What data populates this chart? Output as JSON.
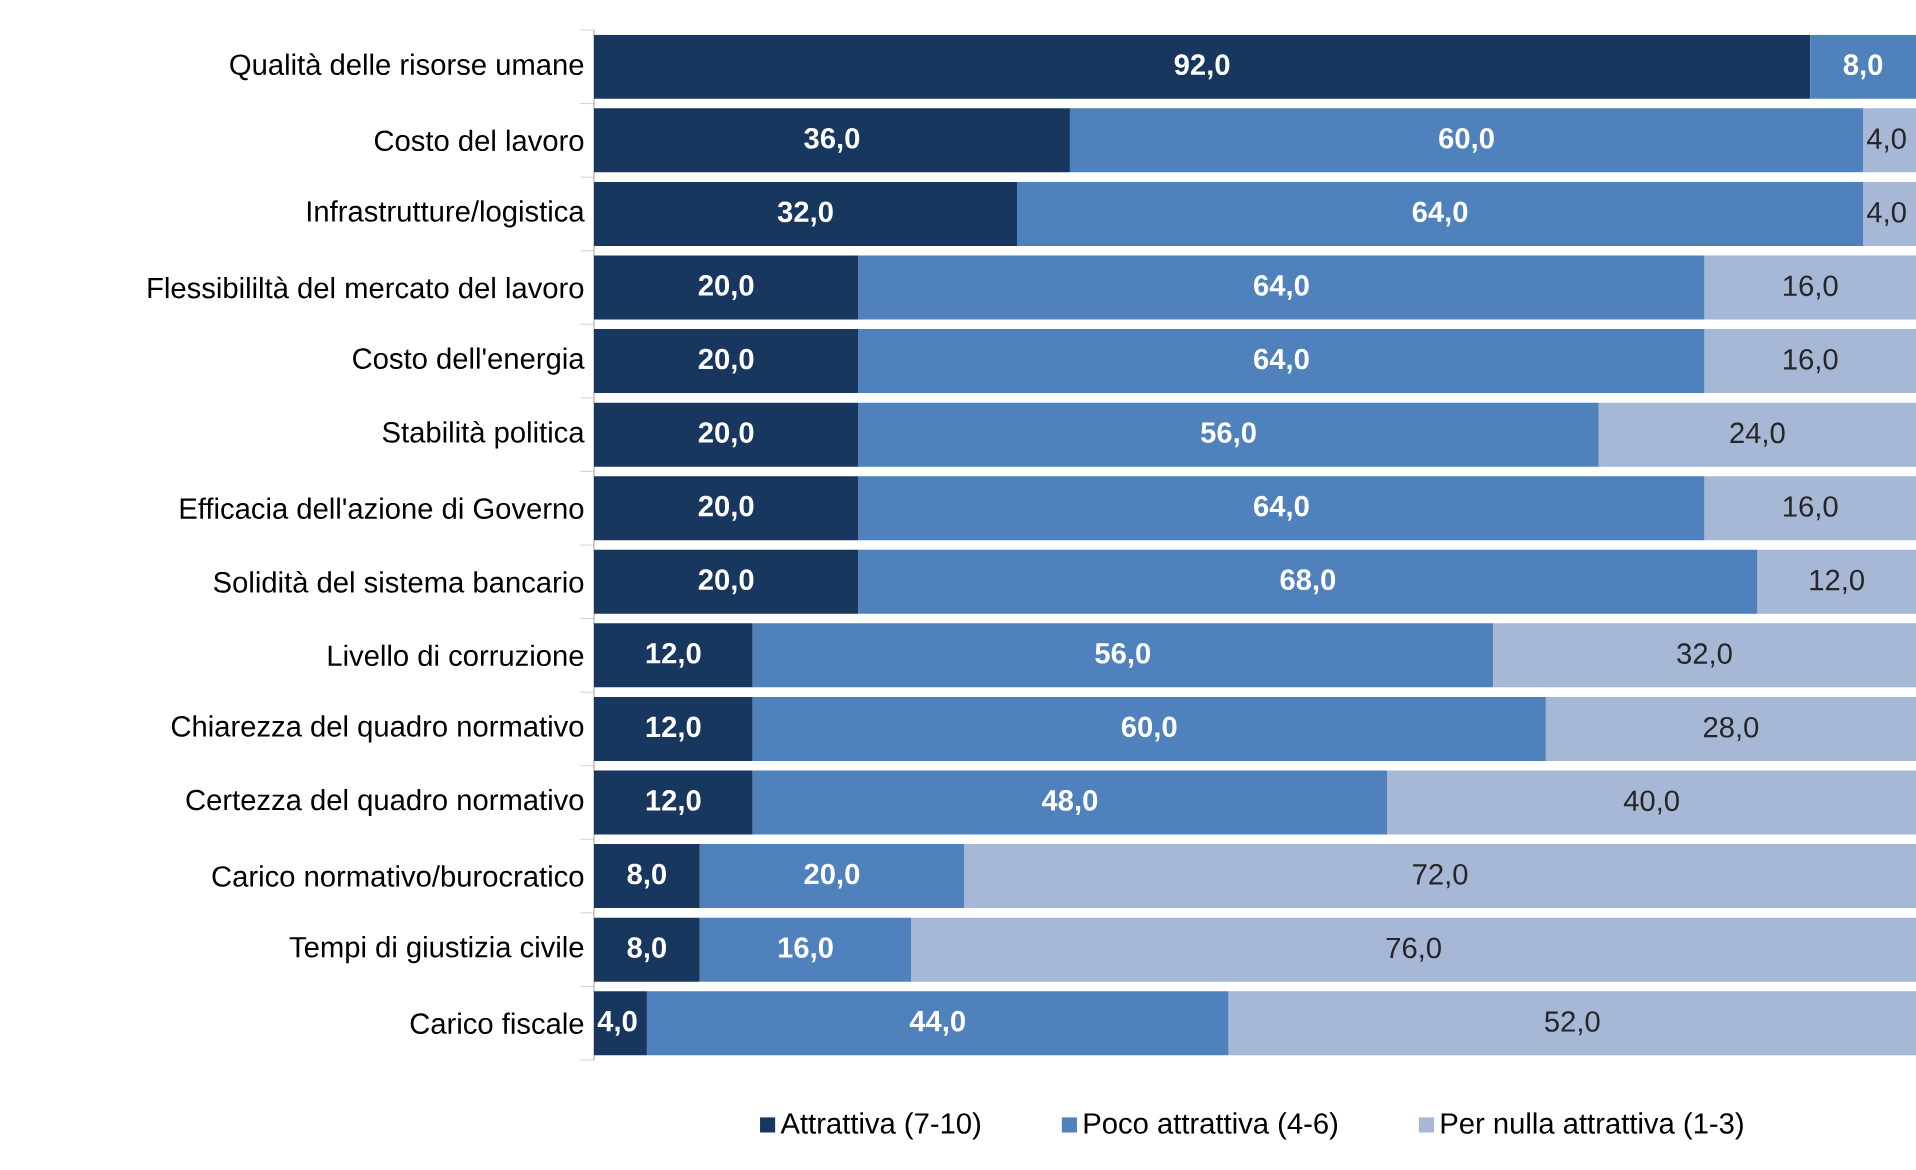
{
  "chart_data": {
    "type": "bar",
    "orientation": "horizontal",
    "stacked": true,
    "legend": "bottom",
    "tick_labels": "y",
    "xlim": [
      0,
      100
    ],
    "categories": [
      "Qualità delle risorse umane",
      "Costo del lavoro",
      "Infrastrutture/logistica",
      "Flessibililtà del mercato del lavoro",
      "Costo dell'energia",
      "Stabilità politica",
      "Efficacia dell'azione di Governo",
      "Solidità del sistema bancario",
      "Livello di corruzione",
      "Chiarezza del quadro normativo",
      "Certezza del quadro normativo",
      "Carico normativo/burocratico",
      "Tempi di giustizia civile",
      "Carico fiscale"
    ],
    "series": [
      {
        "name": "Attrattiva (7-10)",
        "color": "#17375e",
        "values": [
          92,
          36,
          32,
          20,
          20,
          20,
          20,
          20,
          12,
          12,
          12,
          8,
          8,
          4
        ],
        "value_labels": [
          "92,0",
          "36,0",
          "32,0",
          "20,0",
          "20,0",
          "20,0",
          "20,0",
          "20,0",
          "12,0",
          "12,0",
          "12,0",
          "8,0",
          "8,0",
          "4,0"
        ]
      },
      {
        "name": "Poco attrattiva (4-6)",
        "color": "#4f81bd",
        "values": [
          8,
          60,
          64,
          64,
          64,
          56,
          64,
          68,
          56,
          60,
          48,
          20,
          16,
          44
        ],
        "value_labels": [
          "8,0",
          "60,0",
          "64,0",
          "64,0",
          "64,0",
          "56,0",
          "64,0",
          "68,0",
          "56,0",
          "60,0",
          "48,0",
          "20,0",
          "16,0",
          "44,0"
        ]
      },
      {
        "name": "Per nulla attrattiva (1-3)",
        "color": "#a7b7d6",
        "values": [
          0,
          4,
          4,
          16,
          16,
          24,
          16,
          12,
          32,
          28,
          40,
          72,
          76,
          52
        ],
        "value_labels": [
          null,
          "4,0",
          "4,0",
          "16,0",
          "16,0",
          "24,0",
          "16,0",
          "12,0",
          "32,0",
          "28,0",
          "40,0",
          "72,0",
          "76,0",
          "52,0"
        ]
      }
    ]
  }
}
